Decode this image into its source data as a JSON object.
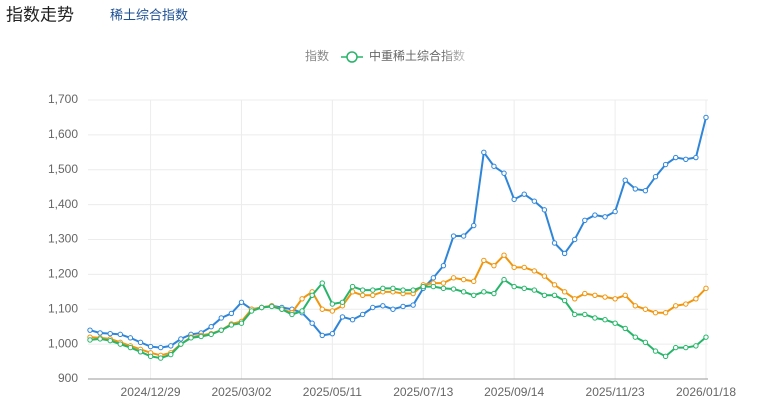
{
  "header": {
    "title": "指数走势",
    "tab": "稀土综合指数"
  },
  "chart_data": {
    "type": "line",
    "categories": [
      null,
      null,
      null,
      null,
      null,
      null,
      "2024/12/29",
      null,
      null,
      null,
      null,
      null,
      null,
      null,
      null,
      "2025/03/02",
      null,
      null,
      null,
      null,
      null,
      null,
      null,
      null,
      "2025/05/11",
      null,
      null,
      null,
      null,
      null,
      null,
      null,
      null,
      "2025/07/13",
      null,
      null,
      null,
      null,
      null,
      null,
      null,
      null,
      "2025/09/14",
      null,
      null,
      null,
      null,
      null,
      null,
      null,
      null,
      null,
      "2025/11/23",
      null,
      null,
      null,
      null,
      null,
      null,
      null,
      null,
      "2026/01/18"
    ],
    "series": [
      {
        "color": "#2f86d9",
        "values": [
          1040,
          1032,
          1030,
          1028,
          1018,
          1005,
          993,
          990,
          995,
          1015,
          1028,
          1032,
          1050,
          1075,
          1088,
          1120,
          1100,
          1105,
          1110,
          1105,
          1100,
          1090,
          1060,
          1025,
          1030,
          1078,
          1070,
          1085,
          1105,
          1110,
          1100,
          1108,
          1112,
          1160,
          1190,
          1225,
          1310,
          1310,
          1340,
          1550,
          1510,
          1490,
          1415,
          1430,
          1410,
          1385,
          1290,
          1260,
          1300,
          1355,
          1370,
          1365,
          1380,
          1470,
          1445,
          1440,
          1480,
          1515,
          1535,
          1530,
          1535,
          1650
        ]
      },
      {
        "name": "指数",
        "color": "#f0960f",
        "values": [
          1020,
          1018,
          1015,
          1005,
          995,
          985,
          975,
          968,
          975,
          1000,
          1020,
          1025,
          1030,
          1040,
          1058,
          1065,
          1100,
          1105,
          1110,
          1100,
          1090,
          1130,
          1150,
          1100,
          1095,
          1110,
          1150,
          1140,
          1140,
          1150,
          1150,
          1145,
          1145,
          1170,
          1175,
          1175,
          1190,
          1185,
          1180,
          1240,
          1225,
          1255,
          1220,
          1220,
          1210,
          1195,
          1170,
          1150,
          1130,
          1145,
          1140,
          1135,
          1130,
          1140,
          1110,
          1100,
          1090,
          1090,
          1110,
          1115,
          1130,
          1160
        ]
      },
      {
        "name": "中重稀土综合指数",
        "color": "#27b56a",
        "values": [
          1012,
          1015,
          1010,
          1000,
          990,
          978,
          965,
          960,
          970,
          1000,
          1018,
          1022,
          1028,
          1040,
          1055,
          1060,
          1095,
          1105,
          1108,
          1100,
          1085,
          1095,
          1140,
          1175,
          1115,
          1120,
          1165,
          1155,
          1155,
          1160,
          1160,
          1155,
          1155,
          1165,
          1165,
          1160,
          1158,
          1150,
          1140,
          1150,
          1145,
          1185,
          1165,
          1160,
          1155,
          1140,
          1140,
          1125,
          1085,
          1085,
          1075,
          1070,
          1060,
          1045,
          1020,
          1005,
          980,
          965,
          990,
          990,
          995,
          1020
        ]
      }
    ],
    "ylim": [
      900,
      1700
    ],
    "yticks": [
      900,
      {
        "value": 1000,
        "label": "1,000"
      },
      {
        "value": 1100,
        "label": "1,100"
      },
      {
        "value": 1200,
        "label": "1,200"
      },
      {
        "value": 1300,
        "label": "1,300"
      },
      {
        "value": 1400,
        "label": "1,400"
      },
      {
        "value": 1500,
        "label": "1,500"
      },
      {
        "value": 1600,
        "label": "1,600"
      },
      {
        "value": 1700,
        "label": "1,700"
      }
    ],
    "grid": true
  }
}
